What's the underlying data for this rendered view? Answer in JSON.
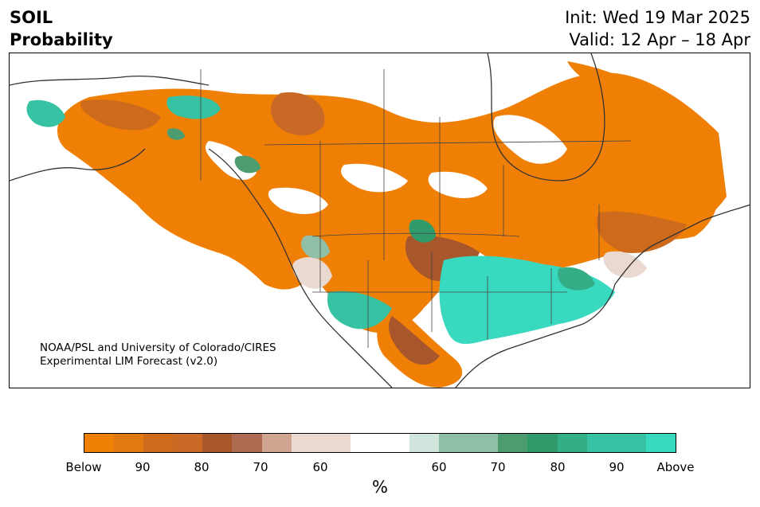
{
  "title": {
    "line1": "SOIL",
    "line2": "Probability"
  },
  "header": {
    "init": "Init: Wed 19 Mar 2025",
    "valid": "Valid: 12 Apr – 18 Apr"
  },
  "credit": {
    "line1": "NOAA/PSL and University of Colorado/CIRES",
    "line2": "Experimental LIM Forecast (v2.0)"
  },
  "colorbar": {
    "unit": "%",
    "colors": [
      "#f07f06",
      "#e07a10",
      "#cd6a1c",
      "#c86a25",
      "#a8562c",
      "#ad6b52",
      "#cfa592",
      "#e9d9d0",
      "#e9d9d0",
      "#ffffff",
      "#ffffff",
      "#d0e5dc",
      "#8fbfa6",
      "#8fbfa6",
      "#4d9c6f",
      "#2f9a6a",
      "#34ae86",
      "#38c2a4",
      "#38c2a4",
      "#39d9c0"
    ],
    "ticks": [
      "Below",
      "90",
      "80",
      "70",
      "60",
      "60",
      "70",
      "80",
      "90",
      "Above"
    ]
  },
  "legend_colors": {
    "below": "#f07f06",
    "above": "#39d9c0",
    "neutral": "#ffffff"
  }
}
